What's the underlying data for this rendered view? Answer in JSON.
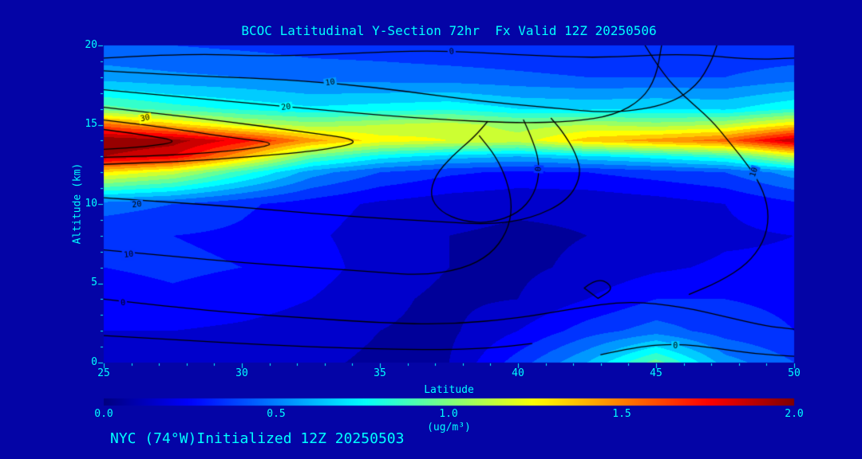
{
  "title": "BCOC Latitudinal Y-Section 72hr  Fx Valid 12Z 20250506",
  "caption": "NYC (74°W)Initialized 12Z 20250503",
  "colors": {
    "background": "#0404A6",
    "text": "#00FFFF",
    "contour_line": "#000000",
    "tick": "#00FFFF"
  },
  "axes": {
    "x": {
      "label": "Latitude",
      "min": 25,
      "max": 50,
      "minor_step": 1,
      "tick_values": [
        25,
        30,
        35,
        40,
        45,
        50
      ],
      "ticks": [
        "25",
        "30",
        "35",
        "40",
        "45",
        "50"
      ]
    },
    "y": {
      "label": "Altitude (km)",
      "min": 0,
      "max": 20,
      "minor_step": 1,
      "tick_values": [
        0,
        5,
        10,
        15,
        20
      ],
      "ticks": [
        "0",
        "5",
        "10",
        "15",
        "20"
      ]
    }
  },
  "colorbar": {
    "min": 0.0,
    "max": 2.0,
    "tick_values": [
      0.0,
      0.5,
      1.0,
      1.5,
      2.0
    ],
    "ticks": [
      "0.0",
      "0.5",
      "1.0",
      "1.5",
      "2.0"
    ],
    "label": "(ug/m³)"
  },
  "chart_data": {
    "type": "heatmap",
    "title": "BCOC Latitudinal Y-Section 72hr  Fx Valid 12Z 20250506",
    "xlabel": "Latitude",
    "ylabel": "Altitude (km)",
    "units": "ug/m³",
    "value_range": [
      0.0,
      2.0
    ],
    "colormap": "jet",
    "fill_level_step": 0.1,
    "x": [
      25,
      27.5,
      30,
      32.5,
      35,
      37.5,
      40,
      42.5,
      45,
      47.5,
      50
    ],
    "y": [
      0,
      2,
      4,
      6,
      8,
      10,
      12,
      13,
      14,
      15,
      16,
      18,
      20
    ],
    "values": [
      [
        0.15,
        0.15,
        0.15,
        0.12,
        0.08,
        0.1,
        0.35,
        0.6,
        0.95,
        0.55,
        0.4
      ],
      [
        0.2,
        0.2,
        0.18,
        0.15,
        0.1,
        0.08,
        0.2,
        0.35,
        0.45,
        0.35,
        0.3
      ],
      [
        0.25,
        0.28,
        0.25,
        0.2,
        0.12,
        0.08,
        0.1,
        0.2,
        0.3,
        0.3,
        0.28
      ],
      [
        0.3,
        0.32,
        0.3,
        0.25,
        0.15,
        0.1,
        0.08,
        0.12,
        0.18,
        0.22,
        0.22
      ],
      [
        0.32,
        0.3,
        0.28,
        0.22,
        0.15,
        0.1,
        0.08,
        0.1,
        0.12,
        0.18,
        0.2
      ],
      [
        0.45,
        0.4,
        0.32,
        0.25,
        0.18,
        0.14,
        0.12,
        0.12,
        0.15,
        0.2,
        0.28
      ],
      [
        1.3,
        1.15,
        0.85,
        0.55,
        0.4,
        0.32,
        0.28,
        0.3,
        0.35,
        0.4,
        0.55
      ],
      [
        1.9,
        1.8,
        1.4,
        0.95,
        0.75,
        0.65,
        0.6,
        0.68,
        0.75,
        0.85,
        1.15
      ],
      [
        2.0,
        1.95,
        1.75,
        1.45,
        1.25,
        1.2,
        1.15,
        1.35,
        1.45,
        1.55,
        1.9
      ],
      [
        1.55,
        1.35,
        1.15,
        1.05,
        1.1,
        1.15,
        1.05,
        1.1,
        1.05,
        1.1,
        1.3
      ],
      [
        0.95,
        0.85,
        0.78,
        0.72,
        0.75,
        0.78,
        0.7,
        0.68,
        0.7,
        0.68,
        0.8
      ],
      [
        0.55,
        0.52,
        0.5,
        0.46,
        0.45,
        0.44,
        0.42,
        0.4,
        0.4,
        0.4,
        0.45
      ],
      [
        0.42,
        0.4,
        0.38,
        0.36,
        0.35,
        0.33,
        0.32,
        0.3,
        0.3,
        0.32,
        0.32
      ]
    ],
    "contours": [
      {
        "level": "0",
        "closed": false,
        "points": [
          [
            25,
            19.2
          ],
          [
            28,
            19.5
          ],
          [
            31,
            19.3
          ],
          [
            34,
            19.5
          ],
          [
            37,
            19.7
          ],
          [
            40,
            19.4
          ],
          [
            43,
            19.2
          ],
          [
            46,
            19.5
          ],
          [
            48.5,
            19.1
          ],
          [
            50,
            19.2
          ]
        ],
        "label": {
          "text": "0",
          "lat": 37.6,
          "alt": 19.6,
          "angle": -8
        }
      },
      {
        "level": "10",
        "closed": false,
        "points": [
          [
            25,
            18.4
          ],
          [
            28,
            18.1
          ],
          [
            31,
            17.9
          ],
          [
            33.5,
            17.6
          ],
          [
            36,
            17.1
          ],
          [
            38.5,
            16.5
          ],
          [
            41,
            16.1
          ],
          [
            43.5,
            15.7
          ],
          [
            45.5,
            16.3
          ],
          [
            46.5,
            17.5
          ],
          [
            47,
            19
          ],
          [
            47.2,
            20
          ]
        ],
        "label": {
          "text": "10",
          "lat": 33.2,
          "alt": 17.65,
          "angle": -8
        }
      },
      {
        "level": "20",
        "closed": false,
        "points": [
          [
            25,
            17.2
          ],
          [
            27.5,
            16.8
          ],
          [
            30,
            16.4
          ],
          [
            32.5,
            16.0
          ],
          [
            35,
            15.6
          ],
          [
            37.5,
            15.3
          ],
          [
            40,
            15.1
          ],
          [
            42,
            15.2
          ],
          [
            43.5,
            15.6
          ],
          [
            44.5,
            16.6
          ],
          [
            45,
            18
          ],
          [
            45.2,
            20
          ]
        ],
        "label": {
          "text": "20",
          "lat": 31.6,
          "alt": 16.1,
          "angle": -8
        }
      },
      {
        "level": "30",
        "closed": false,
        "points": [
          [
            25,
            16.1
          ],
          [
            27,
            15.7
          ],
          [
            29.5,
            15.2
          ],
          [
            32,
            14.6
          ],
          [
            34.5,
            14.0
          ],
          [
            33,
            13.4
          ],
          [
            30.5,
            13.0
          ],
          [
            28,
            12.7
          ],
          [
            25,
            12.5
          ]
        ],
        "label": {
          "text": "30",
          "lat": 26.5,
          "alt": 15.4,
          "angle": -10
        }
      },
      {
        "level": "40",
        "closed": false,
        "points": [
          [
            25,
            15.3
          ],
          [
            27,
            14.9
          ],
          [
            29.5,
            14.2
          ],
          [
            31.5,
            13.8
          ],
          [
            29.5,
            13.3
          ],
          [
            27,
            13.05
          ],
          [
            25,
            12.95
          ]
        ],
        "label": null
      },
      {
        "level": "50",
        "closed": false,
        "points": [
          [
            25,
            14.7
          ],
          [
            26.5,
            14.35
          ],
          [
            27.8,
            13.95
          ],
          [
            26.5,
            13.6
          ],
          [
            25,
            13.45
          ]
        ],
        "label": null
      },
      {
        "level": "20",
        "closed": false,
        "points": [
          [
            25,
            10.4
          ],
          [
            27.5,
            10.1
          ],
          [
            30,
            9.8
          ],
          [
            32.5,
            9.4
          ],
          [
            35,
            9.1
          ],
          [
            37,
            8.9
          ],
          [
            39,
            8.7
          ],
          [
            40.5,
            9.1
          ],
          [
            41.8,
            10.2
          ],
          [
            42.3,
            11.8
          ],
          [
            42.1,
            13.2
          ],
          [
            41.6,
            14.6
          ],
          [
            41.2,
            15.4
          ]
        ],
        "label": {
          "text": "20",
          "lat": 26.2,
          "alt": 9.95,
          "angle": -6
        }
      },
      {
        "level": "0",
        "closed": false,
        "points": [
          [
            40.2,
            15.3
          ],
          [
            40.6,
            13.8
          ],
          [
            40.8,
            12.2
          ],
          [
            40.6,
            10.6
          ],
          [
            40.0,
            9.4
          ],
          [
            39.0,
            8.8
          ],
          [
            38.0,
            8.9
          ],
          [
            37.2,
            9.5
          ],
          [
            36.8,
            10.5
          ],
          [
            37.0,
            11.8
          ],
          [
            37.6,
            13.0
          ],
          [
            38.4,
            14.2
          ],
          [
            38.9,
            15.2
          ]
        ],
        "label": {
          "text": "0",
          "lat": 40.75,
          "alt": 12.2,
          "angle": -85
        }
      },
      {
        "level": "10",
        "closed": false,
        "points": [
          [
            25,
            7.1
          ],
          [
            27.5,
            6.7
          ],
          [
            30,
            6.3
          ],
          [
            32.5,
            6.0
          ],
          [
            35,
            5.7
          ],
          [
            36.5,
            5.5
          ],
          [
            38,
            5.9
          ],
          [
            39,
            6.8
          ],
          [
            39.6,
            8.2
          ],
          [
            39.8,
            9.8
          ],
          [
            39.6,
            11.5
          ],
          [
            39.2,
            13.0
          ],
          [
            38.6,
            14.3
          ]
        ],
        "label": {
          "text": "10",
          "lat": 25.9,
          "alt": 6.8,
          "angle": -6
        }
      },
      {
        "level": "0",
        "closed": false,
        "points": [
          [
            25,
            4.0
          ],
          [
            27.5,
            3.5
          ],
          [
            30,
            3.1
          ],
          [
            32.5,
            2.8
          ],
          [
            35,
            2.5
          ],
          [
            37.5,
            2.4
          ],
          [
            40,
            2.8
          ],
          [
            42,
            3.4
          ],
          [
            44,
            3.9
          ],
          [
            46,
            3.5
          ],
          [
            47.5,
            2.9
          ],
          [
            49,
            2.3
          ],
          [
            50,
            2.1
          ]
        ],
        "label": {
          "text": "0",
          "lat": 25.7,
          "alt": 3.75,
          "angle": -6
        }
      },
      {
        "level": "10",
        "closed": false,
        "points": [
          [
            44.6,
            20
          ],
          [
            45.2,
            18.3
          ],
          [
            46.0,
            16.8
          ],
          [
            47.0,
            15.3
          ],
          [
            47.7,
            13.8
          ],
          [
            48.4,
            12.3
          ],
          [
            48.9,
            10.8
          ],
          [
            49.1,
            9.2
          ],
          [
            48.9,
            7.6
          ],
          [
            48.3,
            6.2
          ],
          [
            47.3,
            5.1
          ],
          [
            46.2,
            4.3
          ]
        ],
        "label": {
          "text": "10",
          "lat": 48.55,
          "alt": 12.0,
          "angle": -72
        }
      },
      {
        "level": "-10",
        "closed": true,
        "points": [
          [
            42.4,
            4.7
          ],
          [
            42.9,
            5.4
          ],
          [
            43.5,
            4.7
          ],
          [
            42.9,
            4.05
          ]
        ],
        "label": null
      },
      {
        "level": "0",
        "closed": false,
        "points": [
          [
            43.0,
            0.5
          ],
          [
            44.3,
            1.0
          ],
          [
            45.8,
            1.2
          ],
          [
            47.2,
            0.9
          ],
          [
            48.6,
            0.55
          ],
          [
            50,
            0.4
          ]
        ],
        "label": {
          "text": "0",
          "lat": 45.7,
          "alt": 1.05,
          "angle": 0
        }
      },
      {
        "level": "-10",
        "closed": false,
        "points": [
          [
            25,
            1.7
          ],
          [
            28,
            1.4
          ],
          [
            31,
            1.1
          ],
          [
            34,
            0.9
          ],
          [
            37,
            0.8
          ],
          [
            39,
            0.9
          ],
          [
            40.5,
            1.2
          ]
        ],
        "label": null
      }
    ]
  }
}
